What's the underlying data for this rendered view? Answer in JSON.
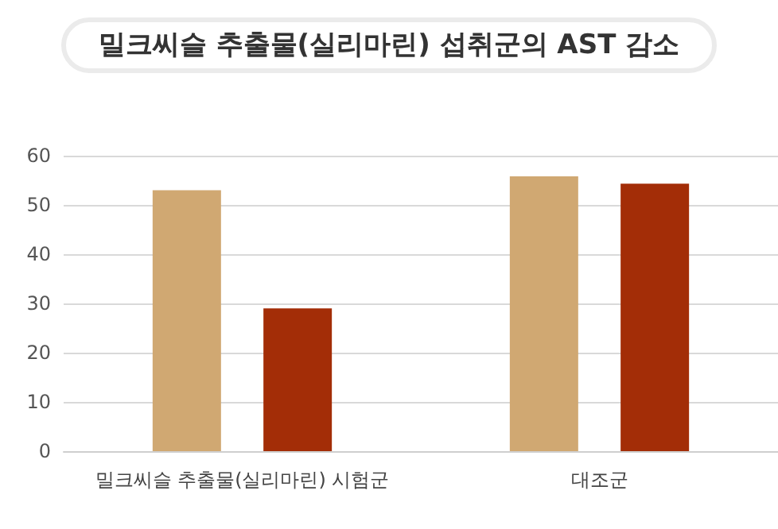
{
  "chart_data": {
    "type": "bar",
    "title": "밀크씨슬 추출물(실리마린) 섭취군의 AST 감소",
    "categories": [
      "밀크씨슬 추출물(실리마린) 시험군",
      "대조군"
    ],
    "series": [
      {
        "color": "#d0a872",
        "values": [
          53,
          55.8
        ]
      },
      {
        "color": "#a32d07",
        "values": [
          29,
          54.3
        ]
      }
    ],
    "ylim": [
      0,
      60
    ],
    "yticks": [
      0,
      10,
      20,
      30,
      40,
      50,
      60
    ],
    "grid": "y"
  }
}
